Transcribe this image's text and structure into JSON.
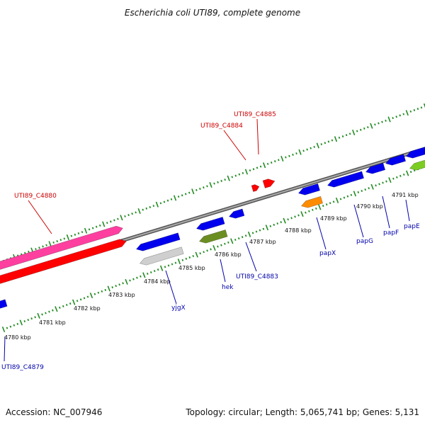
{
  "title": "Escherichia coli UTI89, complete genome",
  "footer": {
    "accession": "Accession: NC_007946",
    "topology": "Topology: circular; Length: 5,065,741 bp; Genes: 5,131"
  },
  "scale_labels": [
    "4780 kbp",
    "4781 kbp",
    "4782 kbp",
    "4783 kbp",
    "4784 kbp",
    "4785 kbp",
    "4786 kbp",
    "4787 kbp",
    "4788 kbp",
    "4789 kbp",
    "4790 kbp",
    "4791 kbp"
  ],
  "gene_labels_top": [
    "UTI89_C4880",
    "UTI89_C4884",
    "UTI89_C4885"
  ],
  "gene_labels_bottom": [
    "UTI89_C4879",
    "yjgX",
    "hek",
    "UTI89_C4883",
    "papX",
    "papG",
    "papF",
    "papE"
  ],
  "colors": {
    "backbone": "#888888",
    "tick": "#228b22",
    "forward": "#ff0000",
    "reverse": "#0000ee",
    "pink": "#ff3fa0",
    "grey": "#cfcfcf",
    "olive": "#6b8e23",
    "orange": "#ff8c00",
    "lightgreen": "#7ccd22"
  }
}
